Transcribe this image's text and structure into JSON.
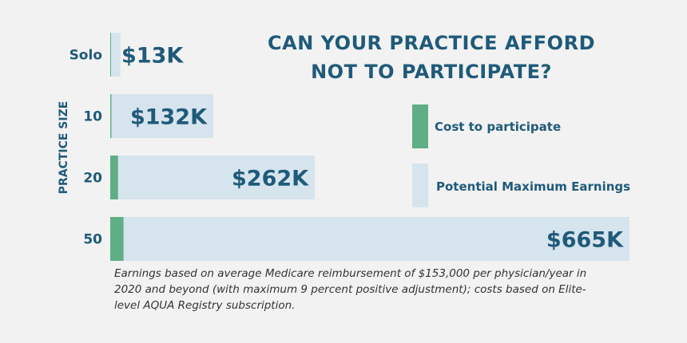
{
  "title_line1": "CAN YOUR PRACTICE AFFORD",
  "title_line2": "NOT TO PARTICIPATE?",
  "colors": {
    "cost": "#5fae86",
    "earnings": "#d6e4ee",
    "text": "#1f5a7a"
  },
  "legend": [
    {
      "label": "Cost to participate",
      "color": "#5fae86"
    },
    {
      "label": "Potential Maximum Earnings",
      "color": "#d6e4ee"
    }
  ],
  "footnote": "Earnings based on average Medicare reimbursement of $153,000 per physician/year in 2020 and beyond (with maximum 9 percent positive adjustment); costs based on Elite-level AQUA Registry subscription.",
  "chart_data": {
    "type": "bar",
    "orientation": "horizontal",
    "ylabel": "PRACTICE SIZE",
    "categories": [
      "Solo",
      "10",
      "20",
      "50"
    ],
    "series": [
      {
        "name": "Cost to participate",
        "values": [
          1,
          1.5,
          10,
          17
        ]
      },
      {
        "name": "Potential Maximum Earnings",
        "values": [
          13,
          132,
          262,
          665
        ]
      }
    ],
    "value_labels": [
      "$13K",
      "$132K",
      "$262K",
      "$665K"
    ],
    "xlim": [
      0,
      665
    ],
    "grid": false,
    "legend_position": "right"
  }
}
